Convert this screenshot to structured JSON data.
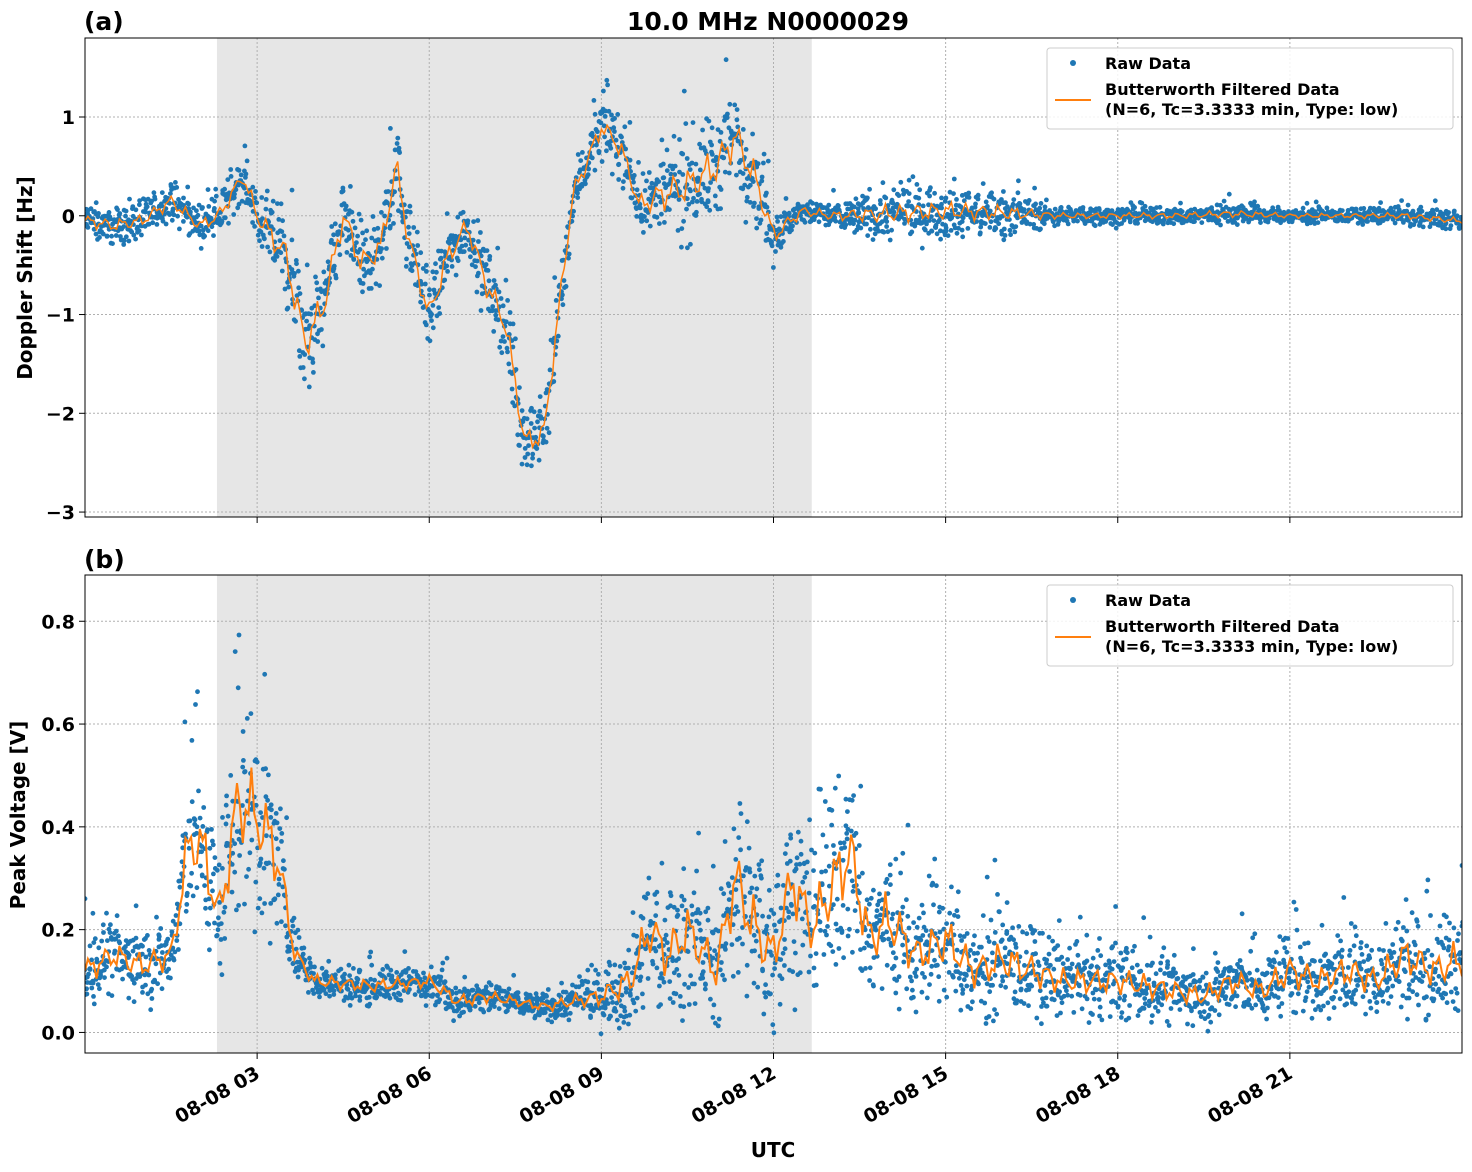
{
  "chart_data": [
    {
      "type": "scatter",
      "title": "10.0 MHz N0000029",
      "panel_label": "(a)",
      "xlabel": "",
      "ylabel": "Doppler Shift [Hz]",
      "xlim": [
        "2025-08-08T00:00",
        "2025-08-09T00:00"
      ],
      "ylim": [
        -3.05,
        1.8
      ],
      "yticks": [
        -3,
        -2,
        -1,
        0,
        1
      ],
      "ytick_labels": [
        "−3",
        "−2",
        "−1",
        "0",
        "1"
      ],
      "grid": true,
      "legend_placement": "top-right",
      "shaded_region": [
        "2025-08-08T02:18",
        "2025-08-08T12:40"
      ],
      "series": [
        {
          "name": "Raw Data",
          "marker": "point",
          "color": "#1f77b4",
          "x": [
            "00:00",
            "00:30",
            "01:00",
            "01:30",
            "02:00",
            "02:20",
            "02:45",
            "03:00",
            "03:30",
            "03:50",
            "04:10",
            "04:30",
            "04:50",
            "05:10",
            "05:25",
            "05:40",
            "06:00",
            "06:20",
            "06:40",
            "07:00",
            "07:20",
            "07:40",
            "08:00",
            "08:15",
            "08:30",
            "09:00",
            "09:20",
            "09:40",
            "10:00",
            "10:30",
            "11:00",
            "11:20",
            "11:40",
            "12:00",
            "12:30",
            "13:00",
            "14:00",
            "15:00",
            "16:00",
            "17:00",
            "18:00",
            "19:00",
            "20:00",
            "21:00",
            "22:00",
            "23:00",
            "23:55"
          ],
          "y": [
            -0.05,
            -0.1,
            -0.05,
            0.15,
            -0.1,
            0.0,
            0.4,
            0.0,
            -0.4,
            -1.3,
            -0.9,
            0.0,
            -0.5,
            -0.3,
            0.5,
            -0.3,
            -1.0,
            -0.4,
            -0.1,
            -0.7,
            -1.1,
            -2.3,
            -2.2,
            -1.0,
            0.2,
            0.9,
            0.7,
            0.1,
            0.2,
            0.3,
            0.5,
            0.8,
            0.4,
            -0.2,
            0.05,
            0.0,
            0.02,
            0.05,
            0.03,
            0.0,
            0.0,
            0.0,
            0.02,
            0.0,
            0.0,
            0.0,
            -0.05
          ],
          "spread": [
            0.2,
            0.2,
            0.2,
            0.2,
            0.2,
            0.25,
            0.25,
            0.3,
            0.5,
            0.6,
            0.5,
            0.4,
            0.5,
            0.4,
            0.5,
            0.4,
            0.4,
            0.4,
            0.3,
            0.4,
            0.4,
            0.4,
            0.4,
            0.4,
            0.3,
            0.3,
            0.35,
            0.3,
            0.5,
            0.6,
            0.6,
            0.6,
            0.5,
            0.3,
            0.15,
            0.15,
            0.3,
            0.3,
            0.25,
            0.1,
            0.1,
            0.1,
            0.12,
            0.08,
            0.08,
            0.1,
            0.1
          ]
        },
        {
          "name": "Butterworth Filtered Data\n(N=6, Tc=3.3333 min, Type: low)",
          "marker": "line",
          "color": "#ff7f0e",
          "x": [
            "00:00",
            "00:30",
            "01:00",
            "01:30",
            "02:00",
            "02:20",
            "02:45",
            "03:00",
            "03:30",
            "03:50",
            "04:10",
            "04:30",
            "04:50",
            "05:10",
            "05:25",
            "05:40",
            "06:00",
            "06:20",
            "06:40",
            "07:00",
            "07:20",
            "07:40",
            "08:00",
            "08:15",
            "08:30",
            "09:00",
            "09:20",
            "09:40",
            "10:00",
            "10:30",
            "11:00",
            "11:20",
            "11:40",
            "12:00",
            "12:30",
            "13:00",
            "14:00",
            "15:00",
            "16:00",
            "17:00",
            "18:00",
            "19:00",
            "20:00",
            "21:00",
            "22:00",
            "23:00",
            "23:55"
          ],
          "y": [
            -0.05,
            -0.1,
            -0.05,
            0.15,
            -0.1,
            0.0,
            0.4,
            0.0,
            -0.4,
            -1.3,
            -0.9,
            0.0,
            -0.5,
            -0.3,
            0.5,
            -0.3,
            -1.0,
            -0.4,
            -0.1,
            -0.7,
            -1.1,
            -2.3,
            -2.2,
            -1.0,
            0.2,
            0.9,
            0.7,
            0.1,
            0.2,
            0.3,
            0.5,
            0.8,
            0.4,
            -0.2,
            0.05,
            0.0,
            0.02,
            0.05,
            0.03,
            0.0,
            0.0,
            0.0,
            0.02,
            0.0,
            0.0,
            0.0,
            -0.05
          ]
        }
      ]
    },
    {
      "type": "scatter",
      "title": "",
      "panel_label": "(b)",
      "xlabel": "UTC",
      "ylabel": "Peak Voltage [V]",
      "xlim": [
        "2025-08-08T00:00",
        "2025-08-09T00:00"
      ],
      "ylim": [
        -0.04,
        0.89
      ],
      "yticks": [
        0.0,
        0.2,
        0.4,
        0.6,
        0.8
      ],
      "ytick_labels": [
        "0.0",
        "0.2",
        "0.4",
        "0.6",
        "0.8"
      ],
      "xticks": [
        "03:00",
        "06:00",
        "09:00",
        "12:00",
        "15:00",
        "18:00",
        "21:00"
      ],
      "xtick_labels": [
        "08-08 03",
        "08-08 06",
        "08-08 09",
        "08-08 12",
        "08-08 15",
        "08-08 18",
        "08-08 21"
      ],
      "grid": true,
      "legend_placement": "top-right",
      "shaded_region": [
        "2025-08-08T02:18",
        "2025-08-08T12:40"
      ],
      "series": [
        {
          "name": "Raw Data",
          "marker": "point",
          "color": "#1f77b4",
          "x": [
            "00:00",
            "00:30",
            "01:00",
            "01:30",
            "01:50",
            "02:05",
            "02:20",
            "02:40",
            "03:00",
            "03:20",
            "03:40",
            "04:00",
            "05:00",
            "06:00",
            "06:30",
            "07:00",
            "07:30",
            "08:00",
            "08:30",
            "09:00",
            "09:30",
            "09:50",
            "10:10",
            "10:30",
            "11:00",
            "11:20",
            "11:40",
            "12:00",
            "12:20",
            "12:40",
            "13:00",
            "13:20",
            "13:40",
            "14:00",
            "14:30",
            "15:00",
            "15:30",
            "16:00",
            "16:30",
            "17:00",
            "18:00",
            "19:00",
            "19:30",
            "20:00",
            "20:30",
            "21:00",
            "21:30",
            "22:00",
            "22:30",
            "23:00",
            "23:30",
            "23:55"
          ],
          "y": [
            0.12,
            0.15,
            0.13,
            0.15,
            0.38,
            0.35,
            0.22,
            0.45,
            0.42,
            0.35,
            0.15,
            0.1,
            0.09,
            0.1,
            0.06,
            0.07,
            0.06,
            0.05,
            0.06,
            0.07,
            0.1,
            0.2,
            0.15,
            0.2,
            0.12,
            0.3,
            0.2,
            0.15,
            0.3,
            0.2,
            0.28,
            0.35,
            0.18,
            0.22,
            0.15,
            0.18,
            0.12,
            0.14,
            0.12,
            0.1,
            0.1,
            0.08,
            0.07,
            0.1,
            0.08,
            0.12,
            0.1,
            0.12,
            0.1,
            0.15,
            0.12,
            0.14
          ],
          "spread": [
            0.08,
            0.08,
            0.08,
            0.08,
            0.2,
            0.2,
            0.15,
            0.25,
            0.25,
            0.2,
            0.06,
            0.04,
            0.04,
            0.04,
            0.04,
            0.04,
            0.03,
            0.03,
            0.04,
            0.06,
            0.1,
            0.15,
            0.15,
            0.15,
            0.12,
            0.2,
            0.2,
            0.15,
            0.2,
            0.15,
            0.22,
            0.22,
            0.15,
            0.18,
            0.12,
            0.15,
            0.1,
            0.12,
            0.1,
            0.08,
            0.08,
            0.07,
            0.06,
            0.08,
            0.07,
            0.1,
            0.08,
            0.1,
            0.08,
            0.12,
            0.1,
            0.12
          ]
        },
        {
          "name": "Butterworth Filtered Data\n(N=6, Tc=3.3333 min, Type: low)",
          "marker": "line",
          "color": "#ff7f0e",
          "x": [
            "00:00",
            "00:30",
            "01:00",
            "01:30",
            "01:50",
            "02:05",
            "02:20",
            "02:40",
            "03:00",
            "03:20",
            "03:40",
            "04:00",
            "05:00",
            "06:00",
            "06:30",
            "07:00",
            "07:30",
            "08:00",
            "08:30",
            "09:00",
            "09:30",
            "09:50",
            "10:10",
            "10:30",
            "11:00",
            "11:20",
            "11:40",
            "12:00",
            "12:20",
            "12:40",
            "13:00",
            "13:20",
            "13:40",
            "14:00",
            "14:30",
            "15:00",
            "15:30",
            "16:00",
            "16:30",
            "17:00",
            "18:00",
            "19:00",
            "19:30",
            "20:00",
            "20:30",
            "21:00",
            "21:30",
            "22:00",
            "22:30",
            "23:00",
            "23:30",
            "23:55"
          ],
          "y": [
            0.12,
            0.15,
            0.13,
            0.15,
            0.38,
            0.35,
            0.22,
            0.45,
            0.42,
            0.35,
            0.15,
            0.1,
            0.09,
            0.1,
            0.06,
            0.07,
            0.06,
            0.05,
            0.06,
            0.07,
            0.1,
            0.2,
            0.15,
            0.2,
            0.12,
            0.3,
            0.2,
            0.15,
            0.3,
            0.2,
            0.28,
            0.35,
            0.18,
            0.22,
            0.15,
            0.18,
            0.12,
            0.14,
            0.12,
            0.1,
            0.1,
            0.08,
            0.07,
            0.1,
            0.08,
            0.12,
            0.1,
            0.12,
            0.1,
            0.15,
            0.12,
            0.14
          ]
        }
      ]
    }
  ]
}
